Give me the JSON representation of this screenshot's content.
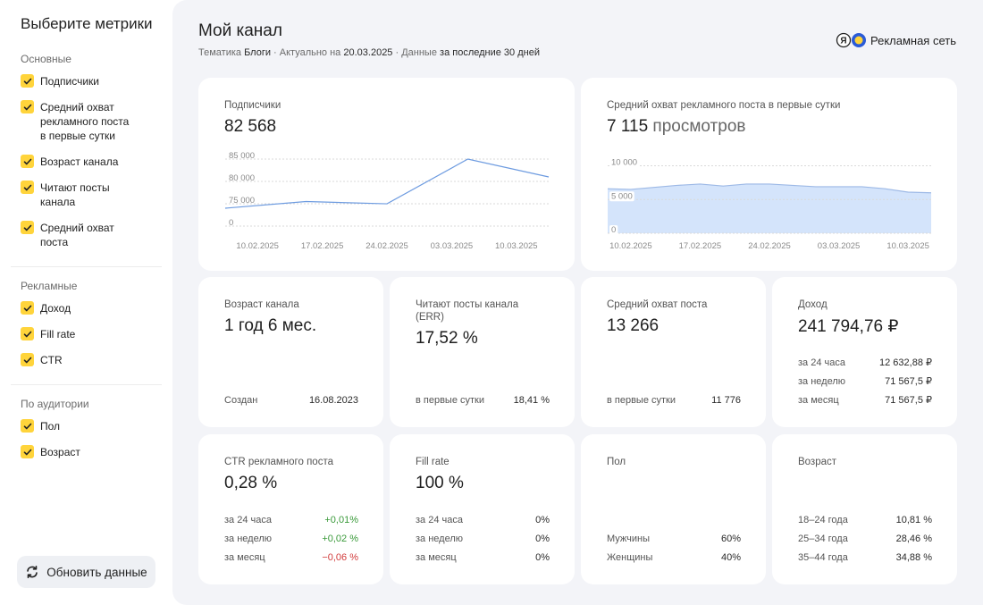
{
  "sidebar": {
    "title": "Выберите метрики",
    "groups": [
      {
        "title": "Основные",
        "items": [
          "Подписчики",
          "Средний охват рекламного поста в первые сутки",
          "Возраст канала",
          "Читают посты канала",
          "Средний охват поста"
        ]
      },
      {
        "title": "Рекламные",
        "items": [
          "Доход",
          "Fill rate",
          "CTR"
        ]
      },
      {
        "title": "По аудитории",
        "items": [
          "Пол",
          "Возраст"
        ]
      }
    ],
    "button": "Обновить данные"
  },
  "header": {
    "title": "Мой канал",
    "meta": [
      {
        "label": "Тематика",
        "value": "Блоги"
      },
      {
        "label": "Актуально на",
        "value": "20.03.2025"
      },
      {
        "label": "Данные",
        "value": "за последние 30 дней"
      }
    ],
    "brand": "Рекламная сеть"
  },
  "charts": [
    {
      "type": "line",
      "label": "Подписчики",
      "value": "82 568",
      "categories": [
        "10.02.2025",
        "17.02.2025",
        "24.02.2025",
        "03.03.2025",
        "10.03.2025"
      ],
      "values": [
        60000,
        75500,
        74800,
        85300,
        81000
      ],
      "ylim": [
        0,
        86000
      ],
      "yticks": [
        {
          "value": 85000,
          "label": "85 000"
        },
        {
          "value": 80000,
          "label": "80 000"
        },
        {
          "value": 75000,
          "label": "75 000"
        },
        0
      ],
      "color": "#6d9be0",
      "grid": true
    },
    {
      "type": "area",
      "label": "Средний охват рекламного поста в первые сутки",
      "value": "7 115",
      "unit": "просмотров",
      "categories": [
        null,
        "10.02.2025",
        null,
        null,
        "17.02.2025",
        null,
        null,
        "24.02.2025",
        null,
        null,
        "03.03.2025",
        null,
        null,
        "10.03.2025",
        null
      ],
      "values": [
        6600,
        6500,
        6800,
        7100,
        7300,
        7000,
        7300,
        7300,
        7100,
        6900,
        6900,
        6900,
        6600,
        6100,
        6000
      ],
      "ylim": [
        0,
        11000
      ],
      "yticks": [
        {
          "value": 10000,
          "label": "10 000"
        },
        {
          "value": 5000,
          "label": "5 000"
        },
        0
      ],
      "color": "#d4e4fb",
      "line_color": "#9db9e6",
      "grid": true
    }
  ],
  "cards": [
    {
      "label": "Возраст канала",
      "value": "1 год 6 мес.",
      "rows": [
        {
          "label": "Создан",
          "value": "16.08.2023"
        }
      ]
    },
    {
      "label": "Читают посты канала (ERR)",
      "value": "17,52 %",
      "rows": [
        {
          "label": "в первые сутки",
          "value": "18,41 %"
        }
      ]
    },
    {
      "label": "Средний охват поста",
      "value": "13 266",
      "rows": [
        {
          "label": "в первые сутки",
          "value": "11 776"
        }
      ]
    },
    {
      "label": "Доход",
      "value": "241 794,76 ₽",
      "rows": [
        {
          "label": "за 24 часа",
          "value": "12 632,88 ₽"
        },
        {
          "label": "за неделю",
          "value": "71 567,5 ₽"
        },
        {
          "label": "за месяц",
          "value": "71 567,5 ₽"
        }
      ]
    },
    {
      "label": "CTR рекламного поста",
      "value": "0,28 %",
      "rows": [
        {
          "label": "за 24 часа",
          "value": "+0,01%",
          "color": "#3a9a3a"
        },
        {
          "label": "за неделю",
          "value": "+0,02 %",
          "color": "#3a9a3a"
        },
        {
          "label": "за месяц",
          "value": "−0,06 %",
          "color": "#d23c3c"
        }
      ]
    },
    {
      "label": "Fill rate",
      "value": "100 %",
      "rows": [
        {
          "label": "за 24 часа",
          "value": "0%"
        },
        {
          "label": "за неделю",
          "value": "0%"
        },
        {
          "label": "за месяц",
          "value": "0%"
        }
      ]
    },
    {
      "label": "Пол",
      "rows": [
        {
          "label": "Мужчины",
          "value": "60%"
        },
        {
          "label": "Женщины",
          "value": "40%"
        }
      ]
    },
    {
      "label": "Возраст",
      "rows": [
        {
          "label": "18–24 года",
          "value": "10,81 %"
        },
        {
          "label": "25–34 года",
          "value": "28,46 %"
        },
        {
          "label": "35–44 года",
          "value": "34,88 %"
        }
      ]
    }
  ]
}
